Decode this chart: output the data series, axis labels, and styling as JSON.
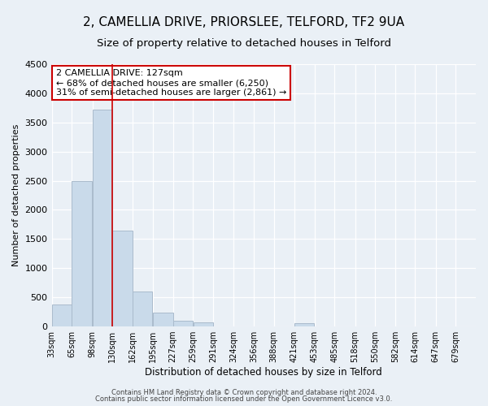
{
  "title1": "2, CAMELLIA DRIVE, PRIORSLEE, TELFORD, TF2 9UA",
  "title2": "Size of property relative to detached houses in Telford",
  "xlabel": "Distribution of detached houses by size in Telford",
  "ylabel": "Number of detached properties",
  "bin_labels": [
    "33sqm",
    "65sqm",
    "98sqm",
    "130sqm",
    "162sqm",
    "195sqm",
    "227sqm",
    "259sqm",
    "291sqm",
    "324sqm",
    "356sqm",
    "388sqm",
    "421sqm",
    "453sqm",
    "485sqm",
    "518sqm",
    "550sqm",
    "582sqm",
    "614sqm",
    "647sqm",
    "679sqm"
  ],
  "bin_left_edges": [
    33,
    65,
    98,
    130,
    162,
    195,
    227,
    259,
    291,
    324,
    356,
    388,
    421,
    453,
    485,
    518,
    550,
    582,
    614,
    647
  ],
  "bin_width": 32,
  "bar_heights": [
    380,
    2500,
    3720,
    1640,
    600,
    240,
    100,
    65,
    0,
    0,
    0,
    0,
    50,
    0,
    0,
    0,
    0,
    0,
    0,
    0
  ],
  "bar_color": "#c9daea",
  "bar_edgecolor": "#aabbcc",
  "vline_x": 130,
  "vline_color": "#cc0000",
  "ylim": [
    0,
    4500
  ],
  "yticks": [
    0,
    500,
    1000,
    1500,
    2000,
    2500,
    3000,
    3500,
    4000,
    4500
  ],
  "xlim_left": 33,
  "xlim_right": 711,
  "annotation_line1": "2 CAMELLIA DRIVE: 127sqm",
  "annotation_line2": "← 68% of detached houses are smaller (6,250)",
  "annotation_line3": "31% of semi-detached houses are larger (2,861) →",
  "annotation_box_color": "#ffffff",
  "annotation_box_edgecolor": "#cc0000",
  "footer1": "Contains HM Land Registry data © Crown copyright and database right 2024.",
  "footer2": "Contains public sector information licensed under the Open Government Licence v3.0.",
  "background_color": "#eaf0f6",
  "grid_color": "#ffffff",
  "title1_fontsize": 11,
  "title2_fontsize": 9.5,
  "ylabel_fontsize": 8,
  "xlabel_fontsize": 8.5,
  "tick_fontsize": 7,
  "ytick_fontsize": 8,
  "annot_fontsize": 8,
  "footer_fontsize": 6
}
